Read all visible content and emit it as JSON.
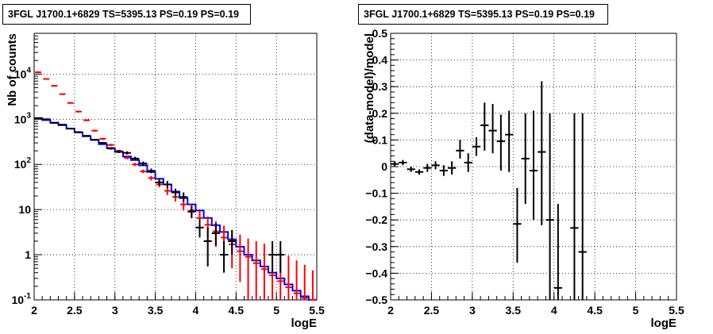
{
  "chart_data": [
    {
      "type": "step-histogram-with-errorbars",
      "title": "3FGL J1700.1+6829 TS=5395.13 PS=0.19 PS=0.19",
      "xlabel": "logE",
      "ylabel": "Nb of counts",
      "xlim": [
        2,
        5.5
      ],
      "ylim": [
        0.1,
        80000
      ],
      "yscale": "log",
      "grid": true,
      "x_ticks": [
        "2",
        "2.5",
        "3",
        "3.5",
        "4",
        "4.5",
        "5",
        "5.5"
      ],
      "y_ticks": [
        {
          "v": 0.1,
          "label": "10",
          "exp": "-1"
        },
        {
          "v": 1,
          "label": "1",
          "exp": ""
        },
        {
          "v": 10,
          "label": "10",
          "exp": ""
        },
        {
          "v": 100,
          "label": "10",
          "exp": "2"
        },
        {
          "v": 1000,
          "label": "10",
          "exp": "3"
        },
        {
          "v": 10000,
          "label": "10",
          "exp": "4"
        }
      ],
      "bin_edges": [
        2.0,
        2.1,
        2.2,
        2.3,
        2.4,
        2.5,
        2.6,
        2.7,
        2.8,
        2.9,
        3.0,
        3.1,
        3.2,
        3.3,
        3.4,
        3.5,
        3.6,
        3.7,
        3.8,
        3.9,
        4.0,
        4.1,
        4.2,
        4.3,
        4.4,
        4.5,
        4.6,
        4.7,
        4.8,
        4.9,
        5.0,
        5.1,
        5.2,
        5.3,
        5.4,
        5.5
      ],
      "series": [
        {
          "name": "",
          "kind": "data",
          "color": "#000000",
          "points": [
            {
              "x": 2.05,
              "y": 1060,
              "lo": 1030,
              "hi": 1090
            },
            {
              "x": 2.15,
              "y": 1000,
              "lo": 970,
              "hi": 1030
            },
            {
              "x": 2.25,
              "y": 830,
              "lo": 805,
              "hi": 855
            },
            {
              "x": 2.35,
              "y": 760,
              "lo": 735,
              "hi": 785
            },
            {
              "x": 2.45,
              "y": 620,
              "lo": 600,
              "hi": 640
            },
            {
              "x": 2.55,
              "y": 520,
              "lo": 500,
              "hi": 540
            },
            {
              "x": 2.65,
              "y": 430,
              "lo": 410,
              "hi": 450
            },
            {
              "x": 2.75,
              "y": 350,
              "lo": 335,
              "hi": 365
            },
            {
              "x": 2.85,
              "y": 300,
              "lo": 285,
              "hi": 315
            },
            {
              "x": 2.95,
              "y": 225,
              "lo": 212,
              "hi": 240
            },
            {
              "x": 3.05,
              "y": 190,
              "lo": 178,
              "hi": 205
            },
            {
              "x": 3.15,
              "y": 180,
              "lo": 166,
              "hi": 195
            },
            {
              "x": 3.25,
              "y": 135,
              "lo": 123,
              "hi": 148
            },
            {
              "x": 3.35,
              "y": 105,
              "lo": 95,
              "hi": 116
            },
            {
              "x": 3.45,
              "y": 72,
              "lo": 64,
              "hi": 81
            },
            {
              "x": 3.55,
              "y": 40,
              "lo": 34,
              "hi": 47
            },
            {
              "x": 3.65,
              "y": 36,
              "lo": 30,
              "hi": 43
            },
            {
              "x": 3.75,
              "y": 24,
              "lo": 19,
              "hi": 29
            },
            {
              "x": 3.85,
              "y": 19,
              "lo": 15,
              "hi": 24
            },
            {
              "x": 3.95,
              "y": 9,
              "lo": 6.5,
              "hi": 12
            },
            {
              "x": 4.05,
              "y": 4,
              "lo": 2.4,
              "hi": 6
            },
            {
              "x": 4.15,
              "y": 2,
              "lo": 0.55,
              "hi": 4
            },
            {
              "x": 4.25,
              "y": 3,
              "lo": 1.6,
              "hi": 5
            },
            {
              "x": 4.35,
              "y": 1,
              "lo": 0.4,
              "hi": 2
            },
            {
              "x": 4.45,
              "y": 2,
              "lo": 1,
              "hi": 3.5
            },
            {
              "x": 4.95,
              "y": 1,
              "lo": 0.4,
              "hi": 2
            },
            {
              "x": 5.05,
              "y": 1,
              "lo": 0.4,
              "hi": 2
            }
          ]
        },
        {
          "name": "",
          "kind": "model-errorbars",
          "color": "#ff0000",
          "points": [
            {
              "x": 2.05,
              "y": 11000,
              "lo": 10500,
              "hi": 11500
            },
            {
              "x": 2.15,
              "y": 7800,
              "lo": 7500,
              "hi": 8100
            },
            {
              "x": 2.25,
              "y": 5500,
              "lo": 5250,
              "hi": 5750
            },
            {
              "x": 2.35,
              "y": 3600,
              "lo": 3450,
              "hi": 3750
            },
            {
              "x": 2.45,
              "y": 2300,
              "lo": 2200,
              "hi": 2400
            },
            {
              "x": 2.55,
              "y": 1480,
              "lo": 1410,
              "hi": 1550
            },
            {
              "x": 2.65,
              "y": 950,
              "lo": 905,
              "hi": 995
            },
            {
              "x": 2.75,
              "y": 560,
              "lo": 530,
              "hi": 590
            },
            {
              "x": 2.85,
              "y": 370,
              "lo": 350,
              "hi": 390
            },
            {
              "x": 2.95,
              "y": 270,
              "lo": 255,
              "hi": 285
            },
            {
              "x": 3.05,
              "y": 200,
              "lo": 188,
              "hi": 212
            },
            {
              "x": 3.15,
              "y": 140,
              "lo": 131,
              "hi": 149
            },
            {
              "x": 3.25,
              "y": 100,
              "lo": 92,
              "hi": 108
            },
            {
              "x": 3.35,
              "y": 70,
              "lo": 64,
              "hi": 77
            },
            {
              "x": 3.45,
              "y": 50,
              "lo": 44,
              "hi": 56
            },
            {
              "x": 3.55,
              "y": 36,
              "lo": 31,
              "hi": 42
            },
            {
              "x": 3.65,
              "y": 26,
              "lo": 21,
              "hi": 31
            },
            {
              "x": 3.75,
              "y": 19,
              "lo": 15,
              "hi": 24
            },
            {
              "x": 3.85,
              "y": 13,
              "lo": 9.5,
              "hi": 17
            },
            {
              "x": 3.95,
              "y": 9.5,
              "lo": 6.5,
              "hi": 13
            },
            {
              "x": 4.05,
              "y": 6.5,
              "lo": 4,
              "hi": 9.5
            },
            {
              "x": 4.15,
              "y": 4.6,
              "lo": 2.5,
              "hi": 7
            },
            {
              "x": 4.25,
              "y": 3.3,
              "lo": 1.5,
              "hi": 5.5
            },
            {
              "x": 4.35,
              "y": 2.4,
              "lo": 0.9,
              "hi": 4.4
            },
            {
              "x": 4.45,
              "y": 1.7,
              "lo": 0.5,
              "hi": 3.5
            },
            {
              "x": 4.55,
              "y": 1.2,
              "lo": 0.25,
              "hi": 2.8
            },
            {
              "x": 4.65,
              "y": 0.9,
              "lo": 0.1,
              "hi": 2.3
            },
            {
              "x": 4.75,
              "y": 0.65,
              "lo": 0.1,
              "hi": 2.0
            },
            {
              "x": 4.85,
              "y": 0.48,
              "lo": 0.1,
              "hi": 1.75
            },
            {
              "x": 4.95,
              "y": 0.35,
              "lo": 0.1,
              "hi": 1.5
            },
            {
              "x": 5.05,
              "y": 0.26,
              "lo": 0.1,
              "hi": 1.3
            },
            {
              "x": 5.15,
              "y": 0.19,
              "lo": 0.1,
              "hi": 0.95
            },
            {
              "x": 5.25,
              "y": 0.14,
              "lo": 0.1,
              "hi": 0.75
            },
            {
              "x": 5.35,
              "y": 0.11,
              "lo": 0.1,
              "hi": 0.6
            },
            {
              "x": 5.45,
              "y": 0.1,
              "lo": 0.1,
              "hi": 0.45
            }
          ]
        },
        {
          "name": "",
          "kind": "model-histogram",
          "color": "#0000ff",
          "values": [
            1060,
            960,
            840,
            740,
            620,
            510,
            420,
            350,
            280,
            230,
            190,
            150,
            125,
            95,
            68,
            48,
            36,
            25,
            18,
            13,
            9.5,
            6.5,
            4.5,
            3.2,
            2.2,
            1.5,
            1.0,
            0.75,
            0.55,
            0.4,
            0.3,
            0.22,
            0.16,
            0.12,
            0.1
          ]
        }
      ]
    },
    {
      "type": "scatter-with-errorbars",
      "title": "3FGL J1700.1+6829 TS=5395.13 PS=0.19 PS=0.19",
      "xlabel": "logE",
      "ylabel": "(data-model)/model",
      "xlim": [
        2,
        5.5
      ],
      "ylim": [
        -0.5,
        0.5
      ],
      "grid": true,
      "x_ticks": [
        "2",
        "2.5",
        "3",
        "3.5",
        "4",
        "4.5",
        "5",
        "5.5"
      ],
      "y_ticks": [
        "−0.5",
        "−0.4",
        "−0.3",
        "−0.2",
        "−0.1",
        "0",
        "0.1",
        "0.2",
        "0.3",
        "0.4",
        "0.5"
      ],
      "series": [
        {
          "name": "",
          "color": "#000000",
          "points": [
            {
              "x": 2.05,
              "y": 0.01,
              "lo": 0.0,
              "hi": 0.02
            },
            {
              "x": 2.15,
              "y": 0.015,
              "lo": 0.005,
              "hi": 0.025
            },
            {
              "x": 2.25,
              "y": -0.01,
              "lo": -0.02,
              "hi": 0.0
            },
            {
              "x": 2.35,
              "y": -0.02,
              "lo": -0.03,
              "hi": -0.01
            },
            {
              "x": 2.45,
              "y": -0.005,
              "lo": -0.02,
              "hi": 0.01
            },
            {
              "x": 2.55,
              "y": 0.005,
              "lo": -0.01,
              "hi": 0.02
            },
            {
              "x": 2.65,
              "y": -0.015,
              "lo": -0.035,
              "hi": 0.005
            },
            {
              "x": 2.75,
              "y": -0.005,
              "lo": -0.03,
              "hi": 0.02
            },
            {
              "x": 2.85,
              "y": 0.06,
              "lo": 0.03,
              "hi": 0.1
            },
            {
              "x": 2.95,
              "y": 0.015,
              "lo": -0.02,
              "hi": 0.05
            },
            {
              "x": 3.05,
              "y": 0.075,
              "lo": 0.04,
              "hi": 0.11
            },
            {
              "x": 3.15,
              "y": 0.155,
              "lo": 0.06,
              "hi": 0.24
            },
            {
              "x": 3.25,
              "y": 0.135,
              "lo": 0.05,
              "hi": 0.235
            },
            {
              "x": 3.35,
              "y": 0.095,
              "lo": -0.015,
              "hi": 0.195
            },
            {
              "x": 3.45,
              "y": 0.12,
              "lo": -0.02,
              "hi": 0.21
            },
            {
              "x": 3.55,
              "y": -0.215,
              "lo": -0.36,
              "hi": -0.08
            },
            {
              "x": 3.65,
              "y": 0.03,
              "lo": -0.14,
              "hi": 0.2
            },
            {
              "x": 3.75,
              "y": -0.015,
              "lo": -0.2,
              "hi": 0.21
            },
            {
              "x": 3.85,
              "y": 0.055,
              "lo": -0.22,
              "hi": 0.32
            },
            {
              "x": 3.95,
              "y": -0.2,
              "lo": -0.5,
              "hi": 0.2
            },
            {
              "x": 4.05,
              "y": -0.455,
              "lo": -0.5,
              "hi": -0.14
            },
            {
              "x": 4.25,
              "y": -0.23,
              "lo": -0.5,
              "hi": 0.2
            },
            {
              "x": 4.35,
              "y": -0.32,
              "lo": -0.5,
              "hi": 0.2
            }
          ]
        }
      ]
    }
  ]
}
